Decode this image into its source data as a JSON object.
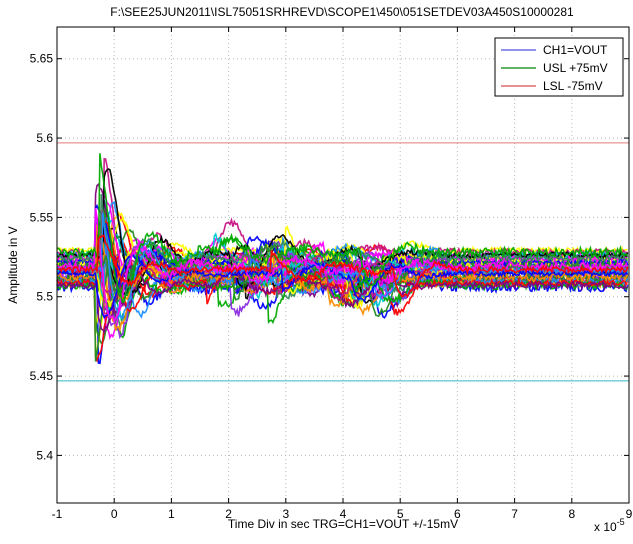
{
  "chart_data": {
    "type": "line",
    "title": "F:\\SEE25JUN2011\\ISL75051SRHREVD\\SCOPE1\\450\\051SETDEV03A450S10000281",
    "xlabel": "Time Div in sec TRG=CH1=VOUT +/-15mV",
    "ylabel": "Amplitude in V",
    "x_exponent_label": "x 10",
    "x_exponent_power": "-5",
    "xlim": [
      -1,
      9
    ],
    "ylim": [
      5.37,
      5.67
    ],
    "x_ticks": [
      -1,
      0,
      1,
      2,
      3,
      4,
      5,
      6,
      7,
      8,
      9
    ],
    "x_tick_labels": [
      "-1",
      "0",
      "1",
      "2",
      "3",
      "4",
      "5",
      "6",
      "7",
      "8",
      "9"
    ],
    "y_ticks": [
      5.4,
      5.45,
      5.5,
      5.55,
      5.6,
      5.65
    ],
    "y_tick_labels": [
      "5.4",
      "5.45",
      "5.5",
      "5.55",
      "5.6",
      "5.65"
    ],
    "grid": true,
    "legend_position": "top-right",
    "legend": [
      {
        "name": "CH1=VOUT",
        "color": "#6f6fe6"
      },
      {
        "name": "USL +75mV",
        "color": "#2e9a2e"
      },
      {
        "name": "LSL -75mV",
        "color": "#e06a6a"
      }
    ],
    "limits": {
      "usl": {
        "value": 5.597,
        "color": "#e87a7a"
      },
      "lsl": {
        "value": 5.447,
        "color": "#34b6c8"
      }
    },
    "series_colors": [
      "#0000ff",
      "#ff00ff",
      "#00aa00",
      "#ff0000",
      "#00cccc",
      "#ffff00",
      "#000000",
      "#8a2be2",
      "#ff8c00",
      "#2e8b57",
      "#800080",
      "#228b22",
      "#c71585",
      "#1e90ff"
    ],
    "transients": [
      {
        "color": "#00bfbf",
        "base": 5.523,
        "off": -0.02
      },
      {
        "color": "#ffff00",
        "base": 5.518,
        "off": 0.02
      },
      {
        "color": "#00aa00",
        "base": 5.521,
        "off": 0.04
      },
      {
        "color": "#8a2be2",
        "base": 5.512,
        "off": 0.06
      },
      {
        "color": "#ff00ff",
        "base": 5.508,
        "off": -0.04
      },
      {
        "color": "#000000",
        "base": 5.522,
        "off": 0.0
      },
      {
        "color": "#ff0000",
        "base": 5.515,
        "off": 0.08
      },
      {
        "color": "#2e8b57",
        "base": 5.525,
        "off": 0.1
      },
      {
        "color": "#ff00ff",
        "base": 5.52,
        "off": 0.12
      },
      {
        "color": "#0000ff",
        "base": 5.51,
        "off": 0.14
      }
    ]
  }
}
